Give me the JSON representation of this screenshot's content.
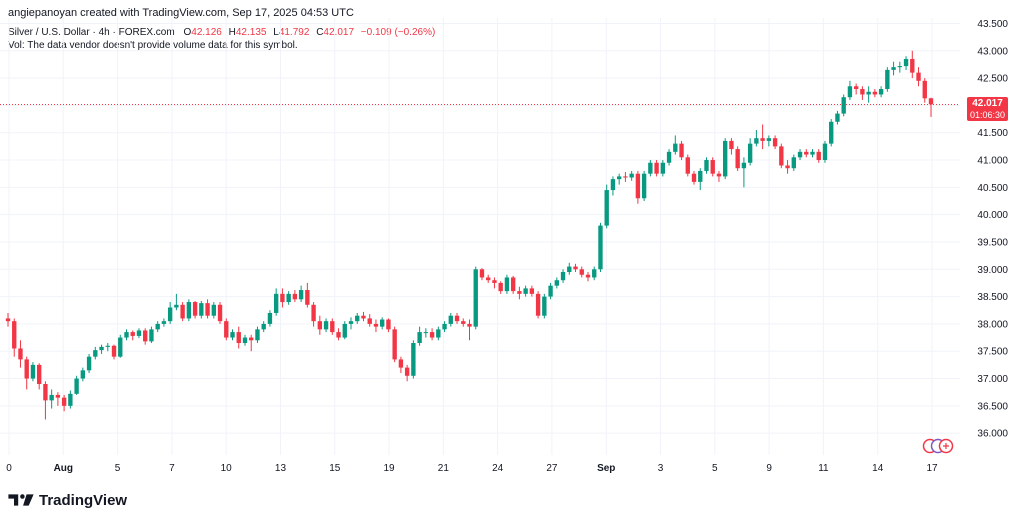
{
  "header": {
    "attribution": "angiepanoyan created with TradingView.com, Sep 17, 2025 04:53 UTC",
    "symbol": "Silver / U.S. Dollar · 4h · FOREX.com",
    "o_label": "O",
    "o_value": "42.126",
    "h_label": "H",
    "h_value": "42.135",
    "l_label": "L",
    "l_value": "41.792",
    "c_label": "C",
    "c_value": "42.017",
    "change": "−0.109 (−0.26%)",
    "vol_note": "Vol: The data vendor doesn't provide volume data for this symbol."
  },
  "price_badge": {
    "price": "42.017",
    "countdown": "01:06:30"
  },
  "brand": {
    "name": "TradingView"
  },
  "icons": {
    "logo": "tradingview-logo-icon",
    "events": "economic-events-icon"
  },
  "colors": {
    "up": "#089981",
    "down": "#f23645",
    "grid": "#f0f3fa",
    "text": "#131722"
  },
  "chart_data": {
    "type": "candlestick",
    "title": "Silver / U.S. Dollar · 4h · FOREX.com",
    "interval": "4h",
    "ylim": [
      35.6,
      43.6
    ],
    "y_ticks": [
      "43.500",
      "43.000",
      "42.500",
      "42.000",
      "41.500",
      "41.000",
      "40.500",
      "40.000",
      "39.500",
      "39.000",
      "38.500",
      "38.000",
      "37.500",
      "37.000",
      "36.500",
      "36.000"
    ],
    "x_ticks": [
      "0",
      "Aug",
      "5",
      "7",
      "10",
      "13",
      "15",
      "19",
      "21",
      "24",
      "27",
      "Sep",
      "3",
      "5",
      "9",
      "11",
      "14",
      "17"
    ],
    "last_price": 42.017,
    "grid": true,
    "candles": [
      [
        38.1,
        38.2,
        37.95,
        38.05
      ],
      [
        38.05,
        38.1,
        37.4,
        37.55
      ],
      [
        37.55,
        37.7,
        37.2,
        37.35
      ],
      [
        37.35,
        37.4,
        36.8,
        37.0
      ],
      [
        37.0,
        37.3,
        36.95,
        37.25
      ],
      [
        37.25,
        37.28,
        36.8,
        36.9
      ],
      [
        36.9,
        36.95,
        36.25,
        36.6
      ],
      [
        36.6,
        36.8,
        36.45,
        36.7
      ],
      [
        36.7,
        36.75,
        36.5,
        36.65
      ],
      [
        36.65,
        36.7,
        36.4,
        36.5
      ],
      [
        36.5,
        36.78,
        36.45,
        36.72
      ],
      [
        36.72,
        37.05,
        36.7,
        37.0
      ],
      [
        37.0,
        37.2,
        36.95,
        37.15
      ],
      [
        37.15,
        37.45,
        37.1,
        37.4
      ],
      [
        37.4,
        37.58,
        37.35,
        37.52
      ],
      [
        37.52,
        37.62,
        37.45,
        37.58
      ],
      [
        37.58,
        37.65,
        37.5,
        37.6
      ],
      [
        37.6,
        37.62,
        37.35,
        37.4
      ],
      [
        37.4,
        37.8,
        37.38,
        37.75
      ],
      [
        37.75,
        37.9,
        37.7,
        37.85
      ],
      [
        37.85,
        37.88,
        37.7,
        37.78
      ],
      [
        37.78,
        37.92,
        37.74,
        37.88
      ],
      [
        37.88,
        37.92,
        37.62,
        37.68
      ],
      [
        37.68,
        37.95,
        37.65,
        37.9
      ],
      [
        37.9,
        38.05,
        37.85,
        38.0
      ],
      [
        38.0,
        38.1,
        37.95,
        38.05
      ],
      [
        38.05,
        38.4,
        38.0,
        38.3
      ],
      [
        38.3,
        38.55,
        38.25,
        38.35
      ],
      [
        38.35,
        38.4,
        38.05,
        38.1
      ],
      [
        38.1,
        38.45,
        38.05,
        38.4
      ],
      [
        38.4,
        38.42,
        38.1,
        38.15
      ],
      [
        38.15,
        38.42,
        38.1,
        38.38
      ],
      [
        38.38,
        38.45,
        38.1,
        38.15
      ],
      [
        38.15,
        38.4,
        38.1,
        38.35
      ],
      [
        38.35,
        38.4,
        38.0,
        38.05
      ],
      [
        38.05,
        38.1,
        37.7,
        37.75
      ],
      [
        37.75,
        37.9,
        37.7,
        37.85
      ],
      [
        37.85,
        37.95,
        37.55,
        37.65
      ],
      [
        37.65,
        37.8,
        37.6,
        37.75
      ],
      [
        37.75,
        37.8,
        37.5,
        37.7
      ],
      [
        37.7,
        37.95,
        37.65,
        37.9
      ],
      [
        37.9,
        38.05,
        37.85,
        38.0
      ],
      [
        38.0,
        38.25,
        37.95,
        38.2
      ],
      [
        38.2,
        38.65,
        38.15,
        38.55
      ],
      [
        38.55,
        38.65,
        38.3,
        38.4
      ],
      [
        38.4,
        38.6,
        38.35,
        38.55
      ],
      [
        38.55,
        38.62,
        38.4,
        38.45
      ],
      [
        38.45,
        38.7,
        38.4,
        38.62
      ],
      [
        38.62,
        38.75,
        38.3,
        38.35
      ],
      [
        38.35,
        38.4,
        37.95,
        38.05
      ],
      [
        38.05,
        38.15,
        37.8,
        37.9
      ],
      [
        37.9,
        38.1,
        37.85,
        38.05
      ],
      [
        38.05,
        38.1,
        37.8,
        37.85
      ],
      [
        37.85,
        37.92,
        37.7,
        37.75
      ],
      [
        37.75,
        38.05,
        37.72,
        38.0
      ],
      [
        38.0,
        38.12,
        37.9,
        38.05
      ],
      [
        38.05,
        38.2,
        38.0,
        38.15
      ],
      [
        38.15,
        38.22,
        38.05,
        38.1
      ],
      [
        38.1,
        38.18,
        37.95,
        38.0
      ],
      [
        38.0,
        38.08,
        37.85,
        37.95
      ],
      [
        37.95,
        38.12,
        37.9,
        38.08
      ],
      [
        38.08,
        38.1,
        37.85,
        37.9
      ],
      [
        37.9,
        37.95,
        37.3,
        37.35
      ],
      [
        37.35,
        37.4,
        37.1,
        37.2
      ],
      [
        37.2,
        37.25,
        36.95,
        37.05
      ],
      [
        37.05,
        37.7,
        37.0,
        37.65
      ],
      [
        37.65,
        37.95,
        37.6,
        37.85
      ],
      [
        37.85,
        37.92,
        37.75,
        37.85
      ],
      [
        37.85,
        37.92,
        37.7,
        37.75
      ],
      [
        37.75,
        37.95,
        37.7,
        37.9
      ],
      [
        37.9,
        38.05,
        37.85,
        38.0
      ],
      [
        38.0,
        38.2,
        37.95,
        38.15
      ],
      [
        38.15,
        38.2,
        38.0,
        38.05
      ],
      [
        38.05,
        38.1,
        37.95,
        38.0
      ],
      [
        38.0,
        38.08,
        37.7,
        37.95
      ],
      [
        37.95,
        39.05,
        37.9,
        39.0
      ],
      [
        39.0,
        39.02,
        38.8,
        38.85
      ],
      [
        38.85,
        38.9,
        38.75,
        38.8
      ],
      [
        38.8,
        38.85,
        38.65,
        38.75
      ],
      [
        38.75,
        38.78,
        38.55,
        38.6
      ],
      [
        38.6,
        38.9,
        38.55,
        38.85
      ],
      [
        38.85,
        38.88,
        38.55,
        38.6
      ],
      [
        38.6,
        38.68,
        38.45,
        38.55
      ],
      [
        38.55,
        38.7,
        38.5,
        38.65
      ],
      [
        38.65,
        38.7,
        38.5,
        38.55
      ],
      [
        38.55,
        38.6,
        38.1,
        38.15
      ],
      [
        38.15,
        38.55,
        38.1,
        38.5
      ],
      [
        38.5,
        38.75,
        38.45,
        38.7
      ],
      [
        38.7,
        38.85,
        38.65,
        38.8
      ],
      [
        38.8,
        39.0,
        38.75,
        38.95
      ],
      [
        38.95,
        39.12,
        38.9,
        39.05
      ],
      [
        39.05,
        39.1,
        38.95,
        39.0
      ],
      [
        39.0,
        39.05,
        38.85,
        38.9
      ],
      [
        38.9,
        38.95,
        38.78,
        38.85
      ],
      [
        38.85,
        39.05,
        38.8,
        39.0
      ],
      [
        39.0,
        39.85,
        38.95,
        39.8
      ],
      [
        39.8,
        40.55,
        39.75,
        40.45
      ],
      [
        40.45,
        40.7,
        40.35,
        40.65
      ],
      [
        40.65,
        40.75,
        40.55,
        40.7
      ],
      [
        40.7,
        40.78,
        40.6,
        40.68
      ],
      [
        40.68,
        40.8,
        40.62,
        40.75
      ],
      [
        40.75,
        40.8,
        40.2,
        40.3
      ],
      [
        40.3,
        40.8,
        40.25,
        40.75
      ],
      [
        40.75,
        41.0,
        40.7,
        40.95
      ],
      [
        40.95,
        41.0,
        40.7,
        40.75
      ],
      [
        40.75,
        41.0,
        40.7,
        40.95
      ],
      [
        40.95,
        41.2,
        40.9,
        41.15
      ],
      [
        41.15,
        41.45,
        41.1,
        41.3
      ],
      [
        41.3,
        41.35,
        41.0,
        41.05
      ],
      [
        41.05,
        41.1,
        40.7,
        40.75
      ],
      [
        40.75,
        40.8,
        40.55,
        40.6
      ],
      [
        40.6,
        40.85,
        40.45,
        40.8
      ],
      [
        40.8,
        41.05,
        40.75,
        41.0
      ],
      [
        41.0,
        41.05,
        40.7,
        40.75
      ],
      [
        40.75,
        40.8,
        40.6,
        40.7
      ],
      [
        40.7,
        41.4,
        40.65,
        41.35
      ],
      [
        41.35,
        41.4,
        41.1,
        41.2
      ],
      [
        41.2,
        41.25,
        40.8,
        40.85
      ],
      [
        40.85,
        41.05,
        40.5,
        40.95
      ],
      [
        40.95,
        41.4,
        40.9,
        41.3
      ],
      [
        41.3,
        41.55,
        41.25,
        41.4
      ],
      [
        41.4,
        41.65,
        41.2,
        41.35
      ],
      [
        41.35,
        41.45,
        41.25,
        41.4
      ],
      [
        41.4,
        41.45,
        41.2,
        41.25
      ],
      [
        41.25,
        41.3,
        40.85,
        40.9
      ],
      [
        40.9,
        41.0,
        40.75,
        40.85
      ],
      [
        40.85,
        41.1,
        40.8,
        41.05
      ],
      [
        41.05,
        41.2,
        41.0,
        41.15
      ],
      [
        41.15,
        41.2,
        41.05,
        41.1
      ],
      [
        41.1,
        41.2,
        41.05,
        41.15
      ],
      [
        41.15,
        41.2,
        40.95,
        41.0
      ],
      [
        41.0,
        41.35,
        40.95,
        41.3
      ],
      [
        41.3,
        41.75,
        41.25,
        41.7
      ],
      [
        41.7,
        41.9,
        41.65,
        41.85
      ],
      [
        41.85,
        42.2,
        41.8,
        42.15
      ],
      [
        42.15,
        42.45,
        42.1,
        42.35
      ],
      [
        42.35,
        42.4,
        42.2,
        42.3
      ],
      [
        42.3,
        42.35,
        42.1,
        42.2
      ],
      [
        42.2,
        42.35,
        42.05,
        42.25
      ],
      [
        42.25,
        42.3,
        42.15,
        42.2
      ],
      [
        42.2,
        42.35,
        42.15,
        42.3
      ],
      [
        42.3,
        42.7,
        42.25,
        42.65
      ],
      [
        42.65,
        42.8,
        42.55,
        42.7
      ],
      [
        42.7,
        42.8,
        42.6,
        42.72
      ],
      [
        42.72,
        42.9,
        42.65,
        42.85
      ],
      [
        42.85,
        43.0,
        42.5,
        42.6
      ],
      [
        42.6,
        42.7,
        42.35,
        42.45
      ],
      [
        42.45,
        42.5,
        42.05,
        42.13
      ],
      [
        42.13,
        42.14,
        41.79,
        42.02
      ]
    ]
  }
}
